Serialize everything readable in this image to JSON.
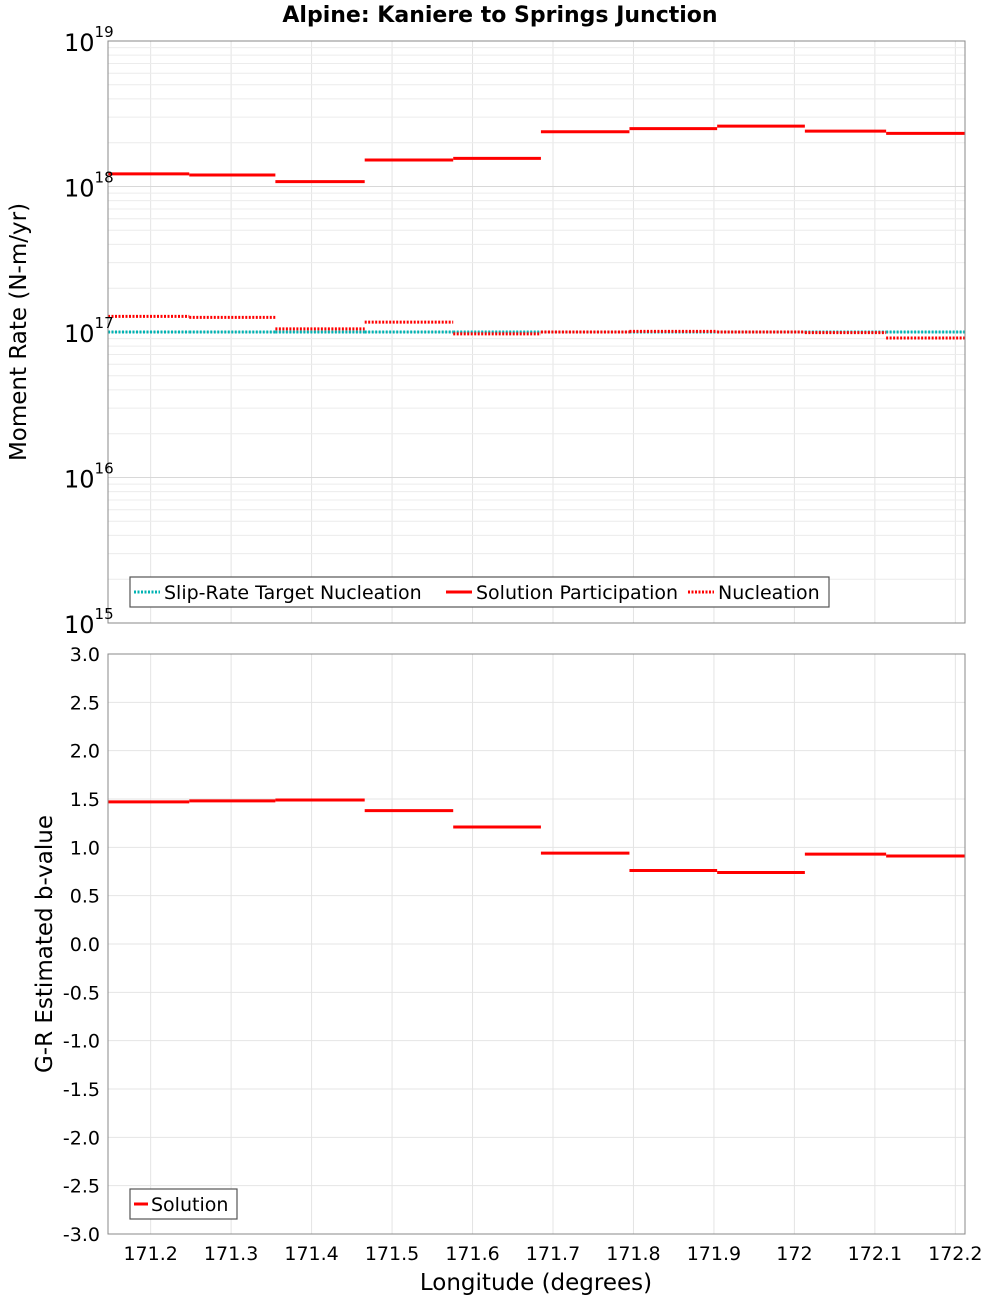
{
  "title": "Alpine: Kaniere to Springs Junction",
  "xlabel": "Longitude (degrees)",
  "colors": {
    "teal": "#00b3b3",
    "red": "#ff0000"
  },
  "chart_data": [
    {
      "id": "top",
      "type": "line",
      "title": "Alpine: Kaniere to Springs Junction",
      "ylabel": "Moment Rate (N-m/yr)",
      "yscale": "log",
      "xlim": [
        171.147,
        172.212
      ],
      "ylim": [
        1000000000000000.0,
        1e+19
      ],
      "xticks": [
        "171.2",
        "171.3",
        "171.4",
        "171.5",
        "171.6",
        "171.7",
        "171.8",
        "171.9",
        "172",
        "172.1",
        "172.2"
      ],
      "xtick_values": [
        171.2,
        171.3,
        171.4,
        171.5,
        171.6,
        171.7,
        171.8,
        171.9,
        172.0,
        172.1,
        172.2
      ],
      "ytick_exponents": [
        "15",
        "16",
        "17",
        "18",
        "19"
      ],
      "ytick_base": "10",
      "legend_position": "bottom-left",
      "series": [
        {
          "name": "Slip-Rate Target Nucleation",
          "style": "dotted",
          "color": "#00b3b3",
          "segments": [
            {
              "x0": 171.147,
              "x1": 171.248,
              "y": 1e+17
            },
            {
              "x0": 171.248,
              "x1": 171.355,
              "y": 1e+17
            },
            {
              "x0": 171.355,
              "x1": 171.466,
              "y": 1e+17
            },
            {
              "x0": 171.466,
              "x1": 171.576,
              "y": 1e+17
            },
            {
              "x0": 171.576,
              "x1": 171.685,
              "y": 1e+17
            },
            {
              "x0": 171.685,
              "x1": 171.795,
              "y": 1e+17
            },
            {
              "x0": 171.795,
              "x1": 171.904,
              "y": 1e+17
            },
            {
              "x0": 171.904,
              "x1": 172.013,
              "y": 1e+17
            },
            {
              "x0": 172.013,
              "x1": 172.114,
              "y": 1e+17
            },
            {
              "x0": 172.114,
              "x1": 172.212,
              "y": 1e+17
            }
          ]
        },
        {
          "name": "Solution Participation",
          "style": "solid",
          "color": "#ff0000",
          "segments": [
            {
              "x0": 171.147,
              "x1": 171.248,
              "y": 1.22e+18
            },
            {
              "x0": 171.248,
              "x1": 171.355,
              "y": 1.2e+18
            },
            {
              "x0": 171.355,
              "x1": 171.466,
              "y": 1.08e+18
            },
            {
              "x0": 171.466,
              "x1": 171.576,
              "y": 1.52e+18
            },
            {
              "x0": 171.576,
              "x1": 171.685,
              "y": 1.56e+18
            },
            {
              "x0": 171.685,
              "x1": 171.795,
              "y": 2.38e+18
            },
            {
              "x0": 171.795,
              "x1": 171.904,
              "y": 2.5e+18
            },
            {
              "x0": 171.904,
              "x1": 172.013,
              "y": 2.6e+18
            },
            {
              "x0": 172.013,
              "x1": 172.114,
              "y": 2.4e+18
            },
            {
              "x0": 172.114,
              "x1": 172.212,
              "y": 2.32e+18
            }
          ]
        },
        {
          "name": "Nucleation",
          "style": "dotted",
          "color": "#ff0000",
          "segments": [
            {
              "x0": 171.147,
              "x1": 171.248,
              "y": 1.28e+17
            },
            {
              "x0": 171.248,
              "x1": 171.355,
              "y": 1.26e+17
            },
            {
              "x0": 171.355,
              "x1": 171.466,
              "y": 1.05e+17
            },
            {
              "x0": 171.466,
              "x1": 171.576,
              "y": 1.17e+17
            },
            {
              "x0": 171.576,
              "x1": 171.685,
              "y": 9.7e+16
            },
            {
              "x0": 171.685,
              "x1": 171.795,
              "y": 1e+17
            },
            {
              "x0": 171.795,
              "x1": 171.904,
              "y": 1.01e+17
            },
            {
              "x0": 171.904,
              "x1": 172.013,
              "y": 1e+17
            },
            {
              "x0": 172.013,
              "x1": 172.114,
              "y": 9.9e+16
            },
            {
              "x0": 172.114,
              "x1": 172.212,
              "y": 9.1e+16
            }
          ]
        }
      ]
    },
    {
      "id": "bottom",
      "type": "line",
      "ylabel": "G-R Estimated b-value",
      "yscale": "linear",
      "xlim": [
        171.147,
        172.212
      ],
      "ylim": [
        -3.0,
        3.0
      ],
      "yticks": [
        "-3.0",
        "-2.5",
        "-2.0",
        "-1.5",
        "-1.0",
        "-0.5",
        "0.0",
        "0.5",
        "1.0",
        "1.5",
        "2.0",
        "2.5",
        "3.0"
      ],
      "ytick_values": [
        -3.0,
        -2.5,
        -2.0,
        -1.5,
        -1.0,
        -0.5,
        0.0,
        0.5,
        1.0,
        1.5,
        2.0,
        2.5,
        3.0
      ],
      "xticks": [
        "171.2",
        "171.3",
        "171.4",
        "171.5",
        "171.6",
        "171.7",
        "171.8",
        "171.9",
        "172",
        "172.1",
        "172.2"
      ],
      "xtick_values": [
        171.2,
        171.3,
        171.4,
        171.5,
        171.6,
        171.7,
        171.8,
        171.9,
        172.0,
        172.1,
        172.2
      ],
      "legend_position": "bottom-left",
      "series": [
        {
          "name": "Solution",
          "style": "solid",
          "color": "#ff0000",
          "segments": [
            {
              "x0": 171.147,
              "x1": 171.248,
              "y": 1.47
            },
            {
              "x0": 171.248,
              "x1": 171.355,
              "y": 1.48
            },
            {
              "x0": 171.355,
              "x1": 171.466,
              "y": 1.49
            },
            {
              "x0": 171.466,
              "x1": 171.576,
              "y": 1.38
            },
            {
              "x0": 171.576,
              "x1": 171.685,
              "y": 1.21
            },
            {
              "x0": 171.685,
              "x1": 171.795,
              "y": 0.94
            },
            {
              "x0": 171.795,
              "x1": 171.904,
              "y": 0.76
            },
            {
              "x0": 171.904,
              "x1": 172.013,
              "y": 0.74
            },
            {
              "x0": 172.013,
              "x1": 172.114,
              "y": 0.93
            },
            {
              "x0": 172.114,
              "x1": 172.212,
              "y": 0.91
            }
          ]
        }
      ]
    }
  ]
}
